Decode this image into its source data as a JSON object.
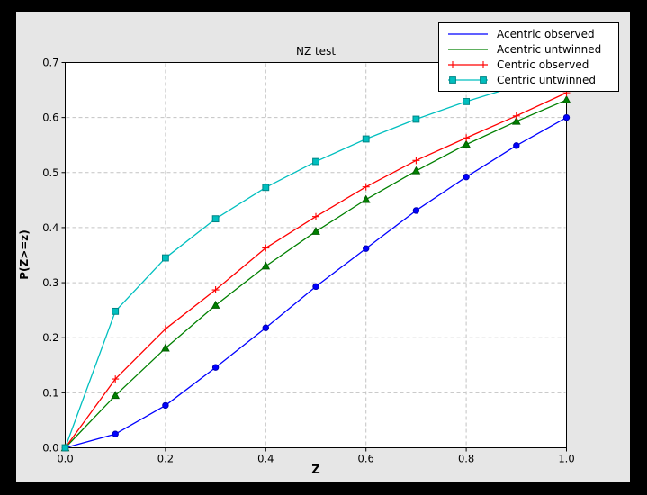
{
  "figure": {
    "title": "NZ test",
    "xlabel": "Z",
    "ylabel": "P(Z>=z)"
  },
  "colors": {
    "figure_bg": "#e6e6e6",
    "plot_bg": "#ffffff",
    "frame": "#000000",
    "grid": "#c3c3c3",
    "outer_border": "#000000"
  },
  "chart_data": {
    "type": "line",
    "title": "NZ test",
    "xlabel": "Z",
    "ylabel": "P(Z>=z)",
    "xlim": [
      0.0,
      1.0
    ],
    "ylim": [
      0.0,
      0.7
    ],
    "grid": true,
    "legend_position": "upper right",
    "xtick_labels": [
      "0.0",
      "0.2",
      "0.4",
      "0.6",
      "0.8",
      "1.0"
    ],
    "ytick_labels": [
      "0.0",
      "0.1",
      "0.2",
      "0.3",
      "0.4",
      "0.5",
      "0.6",
      "0.7"
    ],
    "xticks": [
      0.0,
      0.2,
      0.4,
      0.6,
      0.8,
      1.0
    ],
    "yticks": [
      0.0,
      0.1,
      0.2,
      0.3,
      0.4,
      0.5,
      0.6,
      0.7
    ],
    "x": [
      0.0,
      0.1,
      0.2,
      0.3,
      0.4,
      0.5,
      0.6,
      0.7,
      0.8,
      0.9,
      1.0
    ],
    "series": [
      {
        "name": "Acentric observed",
        "color": "#0000ff",
        "edge": "#0000b0",
        "marker": "circle",
        "legend_markers": false,
        "values": [
          0.0,
          0.025,
          0.077,
          0.146,
          0.218,
          0.293,
          0.362,
          0.431,
          0.492,
          0.549,
          0.6
        ]
      },
      {
        "name": "Acentric untwinned",
        "color": "#008000",
        "edge": "#005c00",
        "marker": "triangle",
        "legend_markers": false,
        "values": [
          0.0,
          0.095,
          0.181,
          0.259,
          0.33,
          0.393,
          0.451,
          0.503,
          0.551,
          0.593,
          0.632
        ]
      },
      {
        "name": "Centric observed",
        "color": "#ff0000",
        "edge": "#ff0000",
        "marker": "plus",
        "legend_markers": true,
        "values": [
          0.0,
          0.125,
          0.216,
          0.287,
          0.363,
          0.42,
          0.474,
          0.522,
          0.563,
          0.603,
          0.645
        ]
      },
      {
        "name": "Centric untwinned",
        "color": "#00bfbf",
        "edge": "#008585",
        "marker": "square",
        "legend_markers": true,
        "values": [
          0.0,
          0.248,
          0.345,
          0.416,
          0.473,
          0.52,
          0.561,
          0.597,
          0.629,
          0.657,
          0.683
        ]
      }
    ]
  }
}
